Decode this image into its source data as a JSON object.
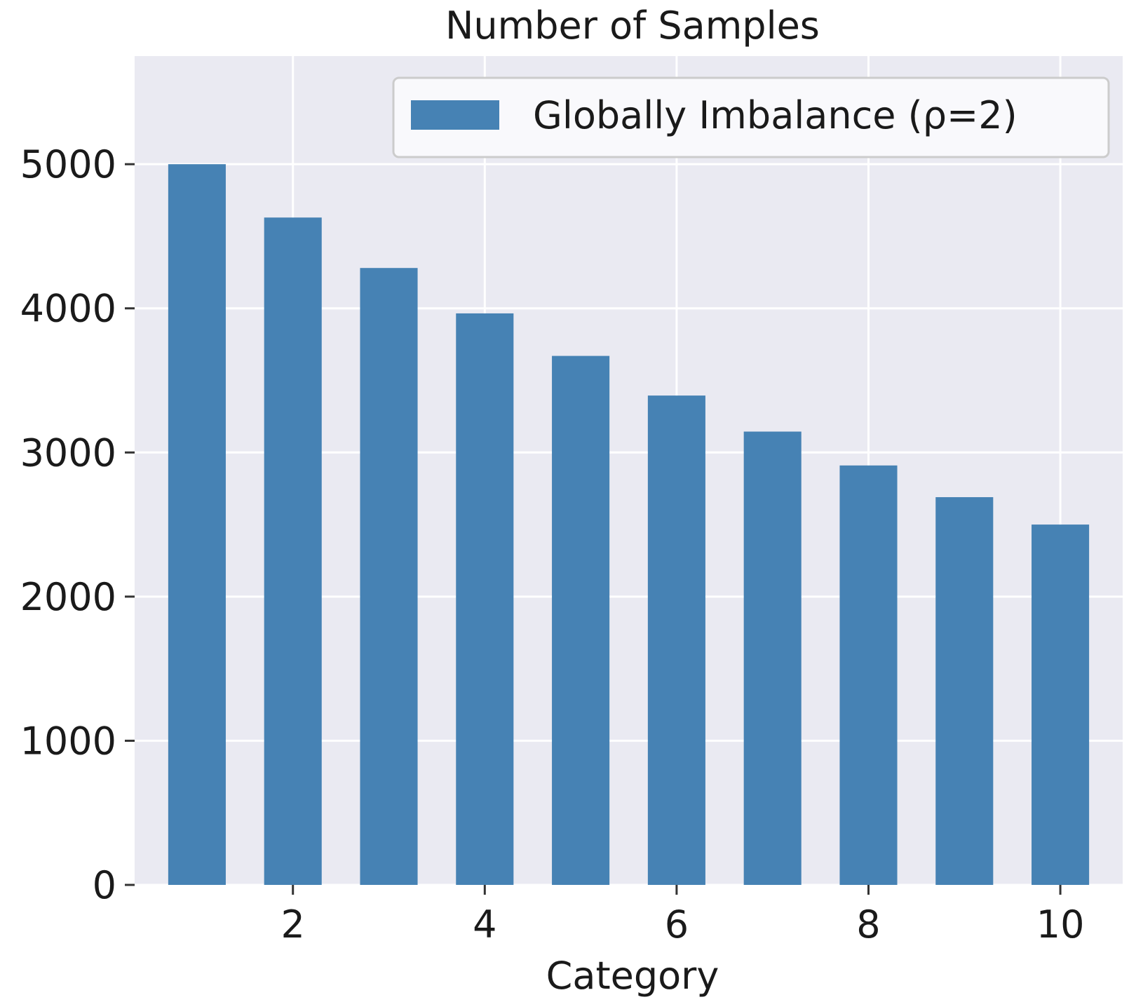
{
  "chart_data": {
    "type": "bar",
    "title": "Number of Samples",
    "xlabel": "Category",
    "ylabel": "",
    "x": [
      1,
      2,
      3,
      4,
      5,
      6,
      7,
      8,
      9,
      10
    ],
    "series": [
      {
        "name": "Globally Imbalance (ρ=2)",
        "values": [
          5000,
          4630,
          4280,
          3965,
          3670,
          3395,
          3145,
          2910,
          2690,
          2500
        ]
      }
    ],
    "xticks": [
      "2",
      "4",
      "6",
      "8",
      "10"
    ],
    "yticks": [
      "0",
      "1000",
      "2000",
      "3000",
      "4000",
      "5000"
    ],
    "xlim": [
      0.35,
      10.65
    ],
    "ylim": [
      0,
      5750
    ],
    "grid": true,
    "legend_position": "top-right",
    "colors": {
      "bar": "#4682b4",
      "plot_background": "#eaeaf2",
      "grid": "#ffffff"
    }
  }
}
